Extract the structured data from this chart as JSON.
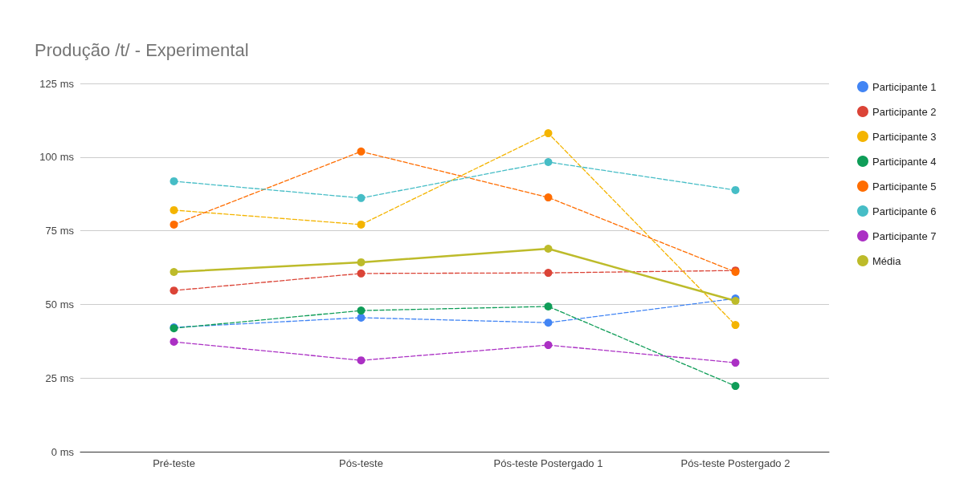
{
  "chart_data": {
    "type": "line",
    "title": "Produção /t/ - Experimental",
    "categories": [
      "Pré-teste",
      "Pós-teste",
      "Pós-teste Postergado 1",
      "Pós-teste Postergado 2"
    ],
    "series": [
      {
        "name": "Participante 1",
        "color": "#4285f4",
        "line_style": "dashed",
        "values": [
          42.2,
          45.5,
          43.8,
          52.0
        ]
      },
      {
        "name": "Participante 2",
        "color": "#db4437",
        "line_style": "dashed",
        "values": [
          54.7,
          60.5,
          60.7,
          61.5
        ]
      },
      {
        "name": "Participante 3",
        "color": "#f4b400",
        "line_style": "dashed",
        "values": [
          82.0,
          77.1,
          108.1,
          43.0
        ]
      },
      {
        "name": "Participante 4",
        "color": "#0f9d58",
        "line_style": "dashed",
        "values": [
          41.9,
          47.9,
          49.3,
          22.3
        ]
      },
      {
        "name": "Participante 5",
        "color": "#ff6d01",
        "line_style": "dashed",
        "values": [
          77.1,
          101.9,
          86.3,
          61.0
        ]
      },
      {
        "name": "Participante 6",
        "color": "#46bdc6",
        "line_style": "dashed",
        "values": [
          91.8,
          86.1,
          98.3,
          88.8
        ]
      },
      {
        "name": "Participante 7",
        "color": "#ab30c4",
        "line_style": "dashed",
        "values": [
          37.3,
          31.0,
          36.2,
          30.2
        ]
      },
      {
        "name": "Média",
        "color": "#bdbb2a",
        "line_style": "solid",
        "values": [
          61.0,
          64.3,
          68.9,
          51.2
        ]
      }
    ],
    "ylim": [
      0,
      125
    ],
    "yticks": [
      {
        "value": 0,
        "label": "0 ms"
      },
      {
        "value": 25,
        "label": "25 ms"
      },
      {
        "value": 50,
        "label": "50 ms"
      },
      {
        "value": 75,
        "label": "75 ms"
      },
      {
        "value": 100,
        "label": "100 ms"
      },
      {
        "value": 125,
        "label": "125 ms"
      }
    ],
    "grid": "y",
    "legend": "right",
    "marker": "circle"
  }
}
